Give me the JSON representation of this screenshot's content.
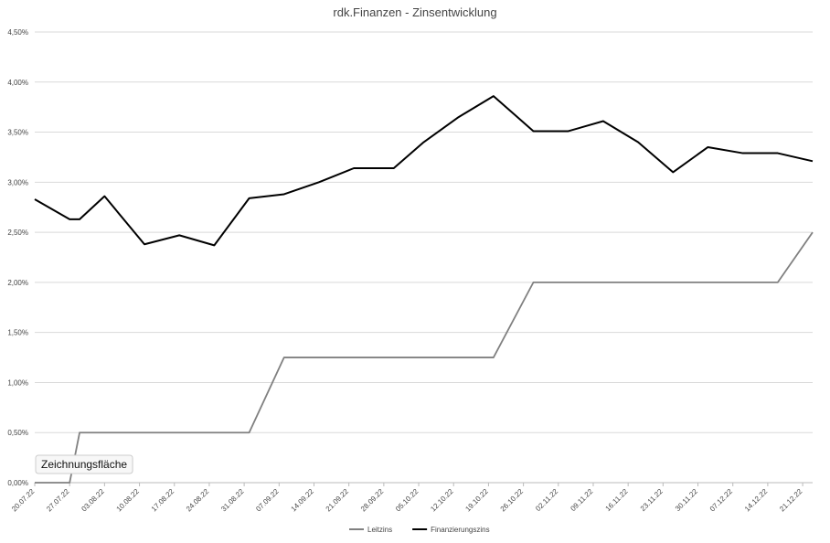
{
  "chart_data": {
    "type": "line",
    "title": "rdk.Finanzen - Zinsentwicklung",
    "x": [
      "20.07.22",
      "27.07.22",
      "29.07.22",
      "03.08.22",
      "11.08.22",
      "18.08.22",
      "25.08.22",
      "01.09.22",
      "08.09.22",
      "15.09.22",
      "22.09.22",
      "30.09.22",
      "06.10.22",
      "13.10.22",
      "20.10.22",
      "28.10.22",
      "04.11.22",
      "11.11.22",
      "18.11.22",
      "25.11.22",
      "02.12.22",
      "09.12.22",
      "16.12.22",
      "23.12.22"
    ],
    "series": [
      {
        "name": "Leitzins",
        "color": "#808080",
        "values": [
          0,
          0,
          0.5,
          0.5,
          0.5,
          0.5,
          0.5,
          0.5,
          1.25,
          1.25,
          1.25,
          1.25,
          1.25,
          1.25,
          1.25,
          2,
          2,
          2,
          2,
          2,
          2,
          2,
          2,
          2.5
        ]
      },
      {
        "name": "Finanzierungszins",
        "color": "#000000",
        "values": [
          2.83,
          2.63,
          2.63,
          2.86,
          2.38,
          2.47,
          2.37,
          2.84,
          2.88,
          3.0,
          3.14,
          3.14,
          3.4,
          3.65,
          3.86,
          3.51,
          3.51,
          3.61,
          3.4,
          3.1,
          3.35,
          3.29,
          3.29,
          3.21
        ]
      }
    ],
    "xlim": [
      "20.07.22",
      "23.12.22"
    ],
    "xticks": [
      "20.07.22",
      "27.07.22",
      "03.08.22",
      "10.08.22",
      "17.08.22",
      "24.08.22",
      "31.08.22",
      "07.09.22",
      "14.09.22",
      "21.09.22",
      "28.09.22",
      "05.10.22",
      "12.10.22",
      "19.10.22",
      "26.10.22",
      "02.11.22",
      "09.11.22",
      "16.11.22",
      "23.11.22",
      "30.11.22",
      "07.12.22",
      "14.12.22",
      "21.12.22"
    ],
    "ylim": [
      0,
      4.5
    ],
    "yticks": [
      {
        "value": 0,
        "label": "0,00%"
      },
      {
        "value": 0.5,
        "label": "0,50%"
      },
      {
        "value": 1,
        "label": "1,00%"
      },
      {
        "value": 1.5,
        "label": "1,50%"
      },
      {
        "value": 2,
        "label": "2,00%"
      },
      {
        "value": 2.5,
        "label": "2,50%"
      },
      {
        "value": 3,
        "label": "3,00%"
      },
      {
        "value": 3.5,
        "label": "3,50%"
      },
      {
        "value": 4,
        "label": "4,00%"
      },
      {
        "value": 4.5,
        "label": "4,50%"
      }
    ],
    "grid": true,
    "legend": "bottom",
    "tooltip": "Zeichnungsfläche"
  }
}
